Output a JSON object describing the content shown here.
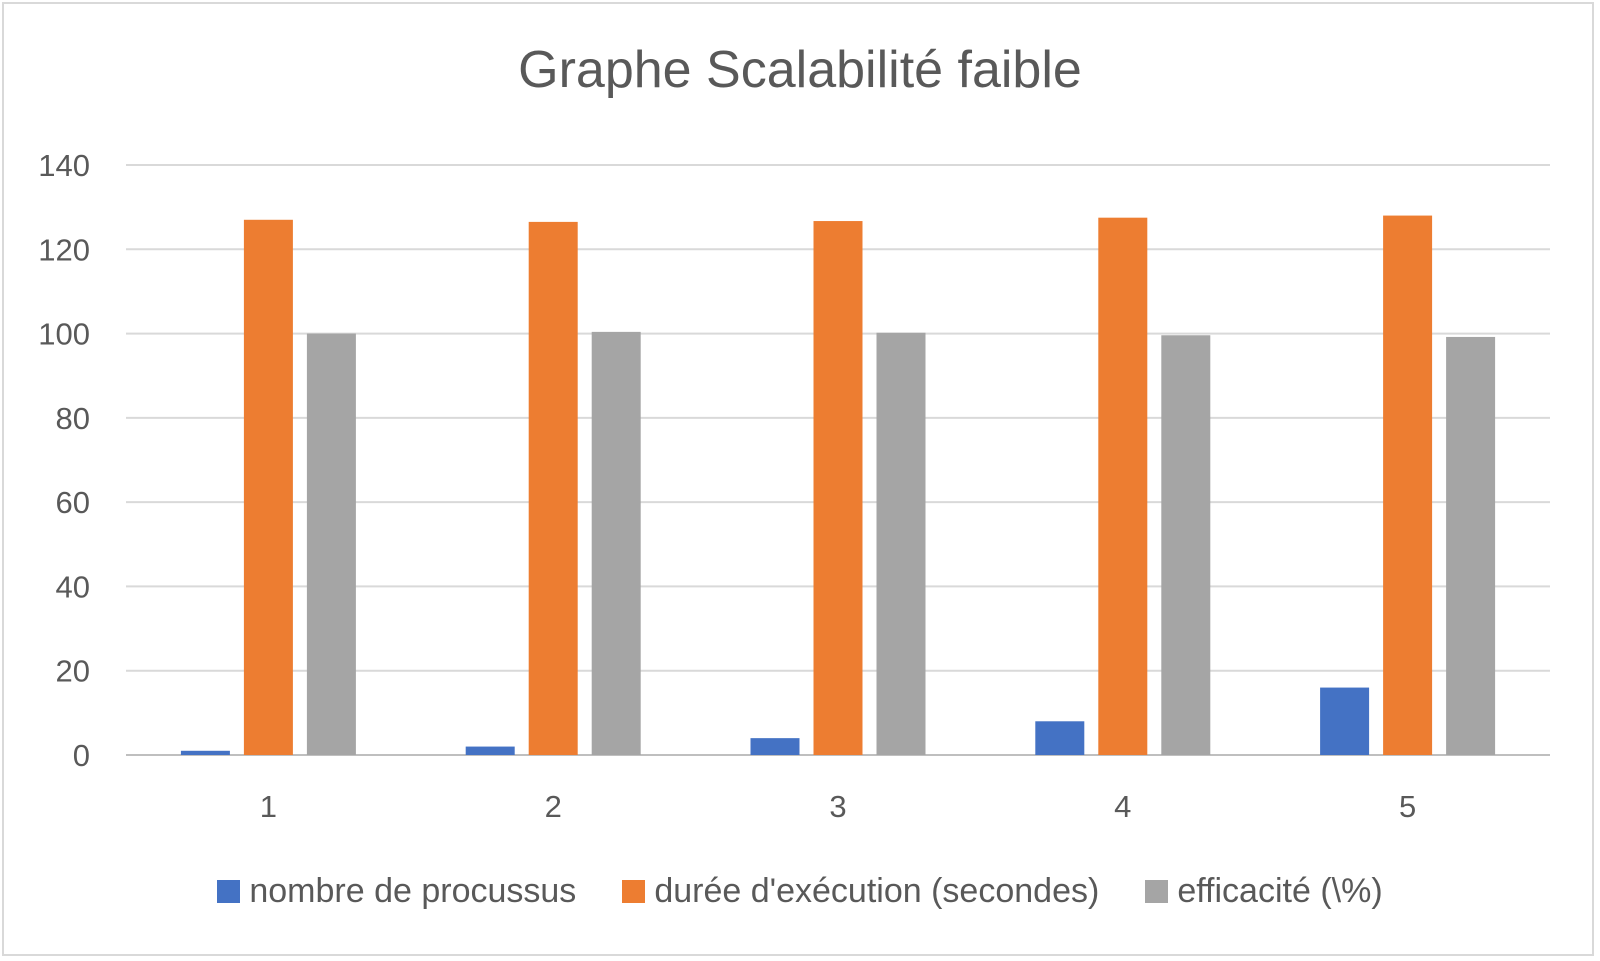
{
  "chart_data": {
    "type": "bar",
    "title": "Graphe Scalabilité faible",
    "xlabel": "",
    "ylabel": "",
    "categories": [
      "1",
      "2",
      "3",
      "4",
      "5"
    ],
    "ylim": [
      0,
      140
    ],
    "yticks": [
      0,
      20,
      40,
      60,
      80,
      100,
      120,
      140
    ],
    "grid": true,
    "legend_position": "bottom",
    "series": [
      {
        "name": "nombre de procussus",
        "color": "#4472c4",
        "values": [
          1,
          2,
          4,
          8,
          16
        ]
      },
      {
        "name": "durée d'exécution (secondes)",
        "color": "#ed7d31",
        "values": [
          127,
          126.5,
          126.7,
          127.5,
          128
        ]
      },
      {
        "name": "efficacité (\\%)",
        "color": "#a5a5a5",
        "values": [
          100,
          100.4,
          100.2,
          99.6,
          99.2
        ]
      }
    ]
  }
}
